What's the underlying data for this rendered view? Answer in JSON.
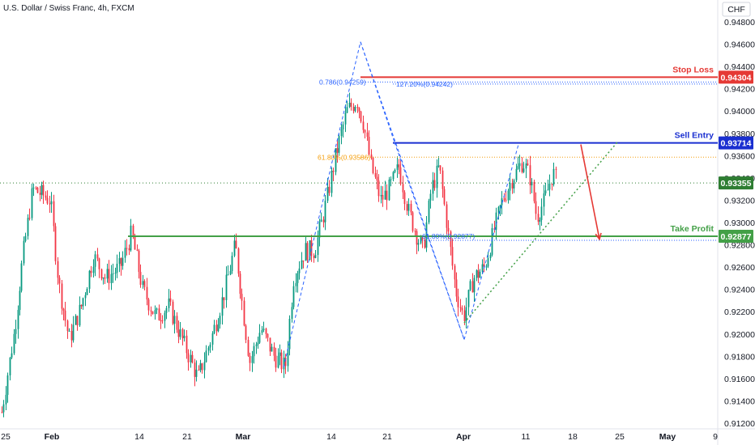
{
  "header": {
    "title": "U.S. Dollar / Swiss Franc, 4h, FXCM",
    "currency": "CHF"
  },
  "chart_data": {
    "type": "candlestick",
    "ylim": [
      0.912,
      0.948
    ],
    "y_ticks": [
      "0.94800",
      "0.94600",
      "0.94400",
      "0.94200",
      "0.94000",
      "0.93800",
      "0.93600",
      "0.93400",
      "0.93200",
      "0.93000",
      "0.92800",
      "0.92600",
      "0.92400",
      "0.92200",
      "0.92000",
      "0.91800",
      "0.91600",
      "0.91400",
      "0.91200"
    ],
    "x_ticks": [
      {
        "label": "25",
        "bold": false
      },
      {
        "label": "Feb",
        "bold": true
      },
      {
        "label": "14",
        "bold": false
      },
      {
        "label": "21",
        "bold": false
      },
      {
        "label": "Mar",
        "bold": true
      },
      {
        "label": "14",
        "bold": false
      },
      {
        "label": "21",
        "bold": false
      },
      {
        "label": "Apr",
        "bold": true
      },
      {
        "label": "11",
        "bold": false
      },
      {
        "label": "18",
        "bold": false
      },
      {
        "label": "25",
        "bold": false
      },
      {
        "label": "May",
        "bold": true
      },
      {
        "label": "9",
        "bold": false
      }
    ],
    "colors": {
      "up": "#26a69a",
      "down": "#ef5350",
      "candle_up": "#089981",
      "candle_down": "#f23645"
    },
    "path_points": [
      [
        0.913,
        0.9205,
        0.919,
        0.9255,
        0.924,
        0.933,
        0.932,
        0.939,
        0.9345,
        0.933,
        0.9305,
        0.929,
        0.9245,
        0.9235,
        0.921,
        0.9195,
        0.9215,
        0.925,
        0.9265,
        0.9275,
        0.924,
        0.9215,
        0.923,
        0.926,
        0.928,
        0.9255,
        0.924,
        0.926,
        0.929,
        0.927,
        0.924,
        0.923
      ]
    ],
    "close_price": 0.93355,
    "levels": [
      {
        "label": "Stop Loss",
        "value": "0.94304",
        "price": 0.94304,
        "color": "#e53935"
      },
      {
        "label": "Sell Entry",
        "value": "0.93714",
        "price": 0.93714,
        "color": "#1a2fd0"
      },
      {
        "label": "Take Profit",
        "value": "0.92877",
        "price": 0.92877,
        "color": "#43a047"
      }
    ],
    "current_price": {
      "value": "0.93355",
      "color": "#2e7d32"
    },
    "fib_labels": [
      {
        "text": "0.786(0.94259)",
        "price": 0.94259,
        "color": "#2962ff"
      },
      {
        "text": "127.20%(0.94242)",
        "price": 0.94242,
        "color": "#2962ff"
      },
      {
        "text": "61.80%(0.93586)",
        "price": 0.93586,
        "color": "#f59e0b"
      },
      {
        "text": "61.80%(0.92877)",
        "price": 0.92877,
        "color": "#2962ff"
      }
    ],
    "fib_dotted": [
      0.9426,
      0.94242,
      0.93586,
      0.9284
    ],
    "zigzag": [
      [
        0.917,
        0.9462
      ],
      [
        0.9462,
        0.9372
      ],
      [
        0.9372,
        0.9195
      ],
      [
        0.9195,
        0.937
      ]
    ],
    "arrow": {
      "from": 0.937,
      "to": 0.9285
    }
  }
}
